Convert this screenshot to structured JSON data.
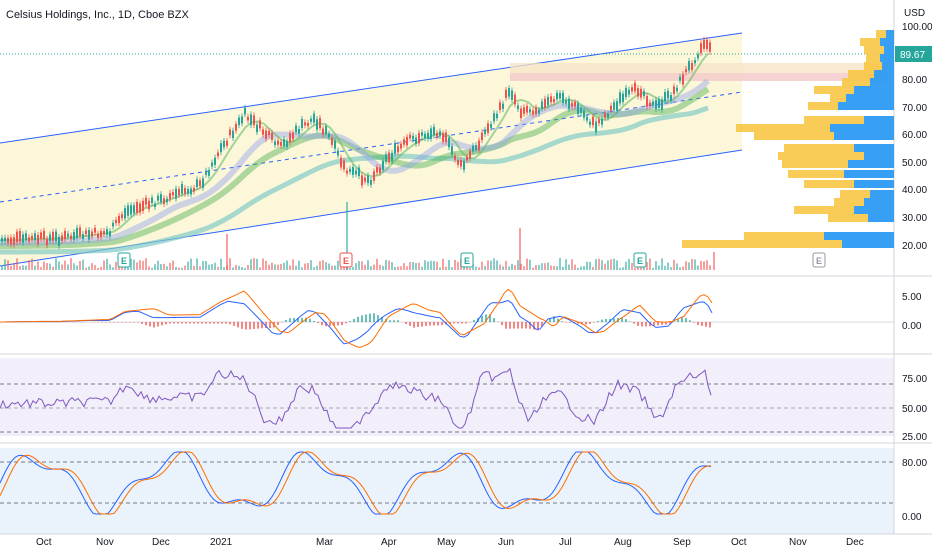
{
  "header": {
    "symbol_title": "Celsius Holdings, Inc., 1D, Cboe BZX",
    "currency": "USD"
  },
  "colors": {
    "up": "#26a69a",
    "down": "#ef5350",
    "blue_line": "#2962ff",
    "orange_line": "#ff6d00",
    "channel_fill": "#fff8dc",
    "vp_blue": "#2196f3",
    "vp_yellow": "#f7c744",
    "price_label": "#26a69a"
  },
  "price_axis": {
    "ticks": [
      "100.00",
      "80.00",
      "70.00",
      "60.00",
      "50.00",
      "40.00",
      "30.00",
      "20.00"
    ],
    "last_price": "89.67"
  },
  "macd_axis": {
    "ticks": [
      "5.00",
      "0.00"
    ]
  },
  "rsi_axis": {
    "ticks": [
      "75.00",
      "50.00",
      "25.00"
    ]
  },
  "stoch_axis": {
    "ticks": [
      "80.00",
      "0.00"
    ]
  },
  "time_axis": {
    "labels": [
      "Oct",
      "Nov",
      "Dec",
      "2021",
      "Mar",
      "Apr",
      "May",
      "Jun",
      "Jul",
      "Aug",
      "Sep",
      "Oct",
      "Nov",
      "Dec"
    ]
  },
  "earnings_badges": [
    "E",
    "E",
    "E",
    "E",
    "E"
  ]
}
